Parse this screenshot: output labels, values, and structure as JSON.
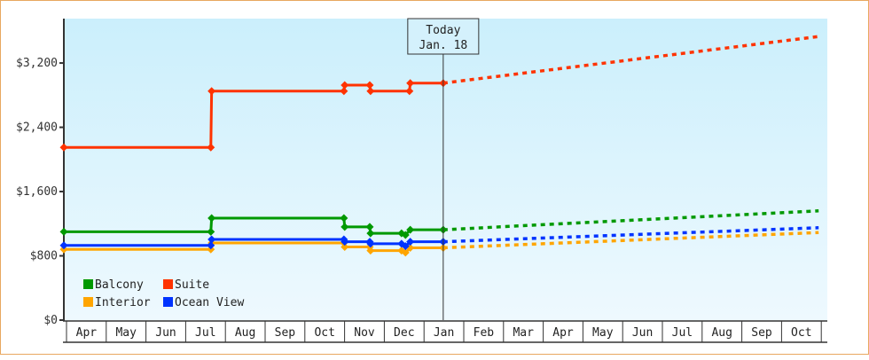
{
  "chart_data": {
    "type": "line",
    "title": "",
    "xlabel": "",
    "ylabel": "",
    "ylim": [
      0,
      3750
    ],
    "yticks": [
      {
        "value": 0,
        "label": "$0"
      },
      {
        "value": 800,
        "label": "$800"
      },
      {
        "value": 1600,
        "label": "$1,600"
      },
      {
        "value": 2400,
        "label": "$2,400"
      },
      {
        "value": 3200,
        "label": "$3,200"
      }
    ],
    "months": [
      "Apr",
      "May",
      "Jun",
      "Jul",
      "Aug",
      "Sep",
      "Oct",
      "Nov",
      "Dec",
      "Jan",
      "Feb",
      "Mar",
      "Apr",
      "May",
      "Jun",
      "Jul",
      "Aug",
      "Sep",
      "Oct"
    ],
    "today_marker": {
      "line1": "Today",
      "line2": "Jan. 18",
      "month_index": 9.55
    },
    "legend": {
      "position": "lower-left",
      "entries": [
        {
          "name": "Balcony",
          "color": "#009900"
        },
        {
          "name": "Suite",
          "color": "#ff3300"
        },
        {
          "name": "Interior",
          "color": "#ffa500"
        },
        {
          "name": "Ocean View",
          "color": "#0033ff"
        }
      ]
    },
    "series": [
      {
        "name": "Suite",
        "color": "#ff3300",
        "history": [
          [
            0,
            2150
          ],
          [
            3.7,
            2150
          ],
          [
            3.72,
            2850
          ],
          [
            7.05,
            2850
          ],
          [
            7.07,
            2925
          ],
          [
            7.7,
            2925
          ],
          [
            7.72,
            2850
          ],
          [
            8.7,
            2850
          ],
          [
            8.72,
            2950
          ],
          [
            9.55,
            2950
          ]
        ],
        "forecast": [
          [
            9.55,
            2950
          ],
          [
            19.0,
            3530
          ]
        ]
      },
      {
        "name": "Balcony",
        "color": "#009900",
        "history": [
          [
            0,
            1100
          ],
          [
            3.7,
            1100
          ],
          [
            3.72,
            1270
          ],
          [
            7.05,
            1270
          ],
          [
            7.07,
            1160
          ],
          [
            7.7,
            1160
          ],
          [
            7.72,
            1080
          ],
          [
            8.5,
            1080
          ],
          [
            8.6,
            1060
          ],
          [
            8.72,
            1125
          ],
          [
            9.55,
            1125
          ]
        ],
        "forecast": [
          [
            9.55,
            1125
          ],
          [
            19.0,
            1360
          ]
        ]
      },
      {
        "name": "Ocean View",
        "color": "#0033ff",
        "history": [
          [
            0,
            930
          ],
          [
            3.7,
            930
          ],
          [
            3.72,
            1005
          ],
          [
            7.05,
            1005
          ],
          [
            7.07,
            975
          ],
          [
            7.7,
            975
          ],
          [
            7.72,
            950
          ],
          [
            8.5,
            950
          ],
          [
            8.6,
            920
          ],
          [
            8.72,
            975
          ],
          [
            9.55,
            975
          ]
        ],
        "forecast": [
          [
            9.55,
            975
          ],
          [
            19.0,
            1150
          ]
        ]
      },
      {
        "name": "Interior",
        "color": "#ffa500",
        "history": [
          [
            0,
            880
          ],
          [
            3.7,
            880
          ],
          [
            3.72,
            960
          ],
          [
            7.05,
            960
          ],
          [
            7.07,
            910
          ],
          [
            7.7,
            910
          ],
          [
            7.72,
            865
          ],
          [
            8.5,
            865
          ],
          [
            8.6,
            840
          ],
          [
            8.72,
            900
          ],
          [
            9.55,
            900
          ]
        ],
        "forecast": [
          [
            9.55,
            900
          ],
          [
            19.0,
            1090
          ]
        ]
      }
    ]
  }
}
